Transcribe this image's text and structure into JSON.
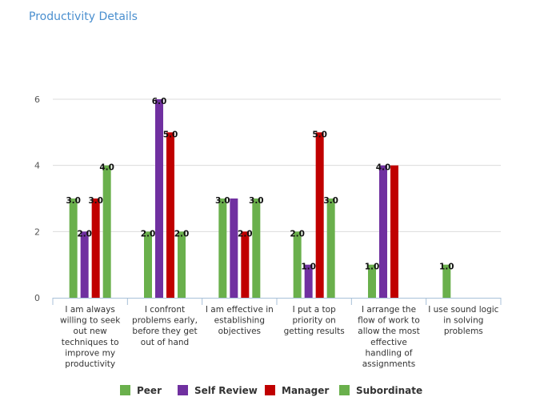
{
  "header": {
    "title": "Productivity Details"
  },
  "chart_data": {
    "type": "bar",
    "title": "Productivity Details",
    "xlabel": "",
    "ylabel": "",
    "ylim": [
      0,
      6
    ],
    "yticks": [
      0,
      2,
      4,
      6
    ],
    "grid": true,
    "legend_position": "bottom",
    "categories": [
      [
        "I am always",
        "willing to seek",
        "out new",
        "techniques to",
        "improve my",
        "productivity"
      ],
      [
        "I confront",
        "problems early,",
        "before they get",
        "out of hand"
      ],
      [
        "I am effective in",
        "establishing",
        "objectives"
      ],
      [
        "I put a top",
        "priority on",
        "getting results"
      ],
      [
        "I arrange the",
        "flow of work to",
        "allow the most",
        "effective",
        "handling of",
        "assignments"
      ],
      [
        "I use sound logic",
        "in solving",
        "problems"
      ]
    ],
    "series": [
      {
        "name": "Peer",
        "color": "#6ab04c",
        "values": [
          3.0,
          2.0,
          3.0,
          2.0,
          1.0,
          1.0
        ]
      },
      {
        "name": "Self Review",
        "color": "#7030a0",
        "values": [
          2.0,
          6.0,
          3.0,
          1.0,
          4.0,
          null
        ]
      },
      {
        "name": "Manager",
        "color": "#c00000",
        "values": [
          3.0,
          5.0,
          2.0,
          5.0,
          4.0,
          null
        ]
      },
      {
        "name": "Subordinate",
        "color": "#6ab04c",
        "values": [
          4.0,
          2.0,
          3.0,
          3.0,
          null,
          null
        ]
      }
    ],
    "data_labels": [
      [
        "3.0",
        "2.0",
        "3.0",
        "4.0"
      ],
      [
        "2.0",
        "6.0",
        "5.0",
        "2.0"
      ],
      [
        "3.0",
        "",
        "2.0",
        "3.0"
      ],
      [
        "2.0",
        "1.0",
        "5.0",
        "3.0"
      ],
      [
        "1.0",
        "4.0",
        "",
        ""
      ],
      [
        "1.0",
        "",
        "",
        ""
      ]
    ]
  }
}
